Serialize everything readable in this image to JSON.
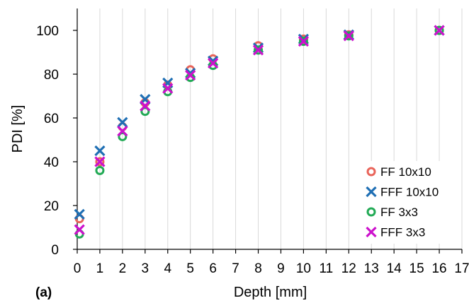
{
  "panel_label": "(a)",
  "colors": {
    "ff10": "#e9645a",
    "fff10": "#1f6fb4",
    "ff3": "#22aa55",
    "fff3": "#cc11cc",
    "grid": "#d9d9d9",
    "axis": "#000000"
  },
  "chart_data": {
    "type": "scatter",
    "title": "",
    "xlabel": "Depth [mm]",
    "ylabel": "PDI [%]",
    "xlim": [
      0,
      17
    ],
    "ylim": [
      0,
      110
    ],
    "xticks": [
      0,
      1,
      2,
      3,
      4,
      5,
      6,
      7,
      8,
      9,
      10,
      11,
      12,
      13,
      14,
      15,
      16,
      17
    ],
    "yticks": [
      0,
      20,
      40,
      60,
      80,
      100
    ],
    "grid": "vertical",
    "legend_position": "bottom-right",
    "series": [
      {
        "name": "FF 10x10",
        "marker": "circle",
        "color_key": "ff10",
        "x": [
          0.1,
          1,
          2,
          3,
          4,
          5,
          6,
          8,
          10,
          12,
          16
        ],
        "y": [
          14,
          40,
          56,
          67,
          75,
          82,
          87,
          93,
          96,
          98,
          100
        ]
      },
      {
        "name": "FFF 10x10",
        "marker": "x",
        "color_key": "fff10",
        "x": [
          0.1,
          1,
          2,
          3,
          4,
          5,
          6,
          8,
          10,
          12,
          16
        ],
        "y": [
          16,
          45,
          58,
          68.5,
          76,
          80.5,
          86,
          92,
          96,
          98,
          100
        ]
      },
      {
        "name": "FF 3x3",
        "marker": "circle",
        "color_key": "ff3",
        "x": [
          0.1,
          1,
          2,
          3,
          4,
          5,
          6,
          8,
          10,
          12,
          16
        ],
        "y": [
          7,
          36,
          51.5,
          63,
          72,
          78.5,
          84,
          91,
          95,
          97.5,
          100
        ]
      },
      {
        "name": "FFF 3x3",
        "marker": "x",
        "color_key": "fff3",
        "x": [
          0.1,
          1,
          2,
          3,
          4,
          5,
          6,
          8,
          10,
          12,
          16
        ],
        "y": [
          9,
          40,
          54,
          65.5,
          73.5,
          79.5,
          85,
          91,
          95,
          97.5,
          100
        ]
      }
    ]
  }
}
